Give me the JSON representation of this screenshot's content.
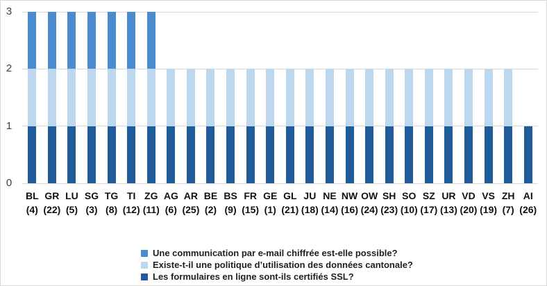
{
  "chart_data": {
    "type": "bar",
    "stacked": true,
    "title": "",
    "xlabel": "",
    "ylabel": "",
    "ylim": [
      0,
      3
    ],
    "yticks": [
      0,
      1,
      2,
      3
    ],
    "grid": true,
    "legend_position": "bottom",
    "categories": [
      "BL",
      "GR",
      "LU",
      "SG",
      "TG",
      "TI",
      "ZG",
      "AG",
      "AR",
      "BE",
      "BS",
      "FR",
      "GE",
      "GL",
      "JU",
      "NE",
      "NW",
      "OW",
      "SH",
      "SO",
      "SZ",
      "UR",
      "VD",
      "VS",
      "ZH",
      "AI"
    ],
    "category_ranks": [
      "(4)",
      "(22)",
      "(5)",
      "(3)",
      "(8)",
      "(12)",
      "(11)",
      "(6)",
      "(25)",
      "(2)",
      "(9)",
      "(15)",
      "(1)",
      "(21)",
      "(18)",
      "(14)",
      "(16)",
      "(24)",
      "(23)",
      "(10)",
      "(17)",
      "(13)",
      "(20)",
      "(19)",
      "(7)",
      "(26)"
    ],
    "series": [
      {
        "name": "Une communication par e-mail chiffrée est-elle possible?",
        "color": "#4b8cd1",
        "values": [
          1,
          1,
          1,
          1,
          1,
          1,
          1,
          0,
          0,
          0,
          0,
          0,
          0,
          0,
          0,
          0,
          0,
          0,
          0,
          0,
          0,
          0,
          0,
          0,
          0,
          0
        ]
      },
      {
        "name": "Existe-t-il une politique d’utilisation des données cantonale?",
        "color": "#bdd7ee",
        "values": [
          1,
          1,
          1,
          1,
          1,
          1,
          1,
          1,
          1,
          1,
          1,
          1,
          1,
          1,
          1,
          1,
          1,
          1,
          1,
          1,
          1,
          1,
          1,
          1,
          1,
          0
        ]
      },
      {
        "name": "Les formulaires en ligne sont-ils certifiés SSL?",
        "color": "#1f5c99",
        "values": [
          1,
          1,
          1,
          1,
          1,
          1,
          1,
          1,
          1,
          1,
          1,
          1,
          1,
          1,
          1,
          1,
          1,
          1,
          1,
          1,
          1,
          1,
          1,
          1,
          1,
          1
        ]
      }
    ]
  },
  "colors": {
    "background": "#ffffff",
    "border": "#d9d9d9",
    "gridline": "#d9d9d9",
    "y_tick_label": "#404040",
    "category_label": "#111111",
    "legend_text": "#1f1f1f"
  }
}
